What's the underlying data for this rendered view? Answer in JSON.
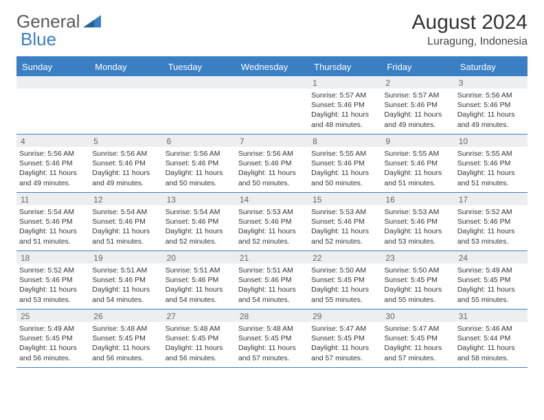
{
  "logo": {
    "text1": "General",
    "text2": "Blue"
  },
  "title": {
    "month": "August 2024",
    "location": "Luragung, Indonesia"
  },
  "colors": {
    "brand_blue": "#3a7fc4",
    "header_text": "#ffffff",
    "date_bg": "#eceeef",
    "date_text": "#666666",
    "body_text": "#333333",
    "logo_gray": "#5a5a5a"
  },
  "weekdays": [
    "Sunday",
    "Monday",
    "Tuesday",
    "Wednesday",
    "Thursday",
    "Friday",
    "Saturday"
  ],
  "weeks": [
    [
      {
        "date": "",
        "sunrise": "",
        "sunset": "",
        "daylight": ""
      },
      {
        "date": "",
        "sunrise": "",
        "sunset": "",
        "daylight": ""
      },
      {
        "date": "",
        "sunrise": "",
        "sunset": "",
        "daylight": ""
      },
      {
        "date": "",
        "sunrise": "",
        "sunset": "",
        "daylight": ""
      },
      {
        "date": "1",
        "sunrise": "Sunrise: 5:57 AM",
        "sunset": "Sunset: 5:46 PM",
        "daylight": "Daylight: 11 hours and 48 minutes."
      },
      {
        "date": "2",
        "sunrise": "Sunrise: 5:57 AM",
        "sunset": "Sunset: 5:46 PM",
        "daylight": "Daylight: 11 hours and 49 minutes."
      },
      {
        "date": "3",
        "sunrise": "Sunrise: 5:56 AM",
        "sunset": "Sunset: 5:46 PM",
        "daylight": "Daylight: 11 hours and 49 minutes."
      }
    ],
    [
      {
        "date": "4",
        "sunrise": "Sunrise: 5:56 AM",
        "sunset": "Sunset: 5:46 PM",
        "daylight": "Daylight: 11 hours and 49 minutes."
      },
      {
        "date": "5",
        "sunrise": "Sunrise: 5:56 AM",
        "sunset": "Sunset: 5:46 PM",
        "daylight": "Daylight: 11 hours and 49 minutes."
      },
      {
        "date": "6",
        "sunrise": "Sunrise: 5:56 AM",
        "sunset": "Sunset: 5:46 PM",
        "daylight": "Daylight: 11 hours and 50 minutes."
      },
      {
        "date": "7",
        "sunrise": "Sunrise: 5:56 AM",
        "sunset": "Sunset: 5:46 PM",
        "daylight": "Daylight: 11 hours and 50 minutes."
      },
      {
        "date": "8",
        "sunrise": "Sunrise: 5:55 AM",
        "sunset": "Sunset: 5:46 PM",
        "daylight": "Daylight: 11 hours and 50 minutes."
      },
      {
        "date": "9",
        "sunrise": "Sunrise: 5:55 AM",
        "sunset": "Sunset: 5:46 PM",
        "daylight": "Daylight: 11 hours and 51 minutes."
      },
      {
        "date": "10",
        "sunrise": "Sunrise: 5:55 AM",
        "sunset": "Sunset: 5:46 PM",
        "daylight": "Daylight: 11 hours and 51 minutes."
      }
    ],
    [
      {
        "date": "11",
        "sunrise": "Sunrise: 5:54 AM",
        "sunset": "Sunset: 5:46 PM",
        "daylight": "Daylight: 11 hours and 51 minutes."
      },
      {
        "date": "12",
        "sunrise": "Sunrise: 5:54 AM",
        "sunset": "Sunset: 5:46 PM",
        "daylight": "Daylight: 11 hours and 51 minutes."
      },
      {
        "date": "13",
        "sunrise": "Sunrise: 5:54 AM",
        "sunset": "Sunset: 5:46 PM",
        "daylight": "Daylight: 11 hours and 52 minutes."
      },
      {
        "date": "14",
        "sunrise": "Sunrise: 5:53 AM",
        "sunset": "Sunset: 5:46 PM",
        "daylight": "Daylight: 11 hours and 52 minutes."
      },
      {
        "date": "15",
        "sunrise": "Sunrise: 5:53 AM",
        "sunset": "Sunset: 5:46 PM",
        "daylight": "Daylight: 11 hours and 52 minutes."
      },
      {
        "date": "16",
        "sunrise": "Sunrise: 5:53 AM",
        "sunset": "Sunset: 5:46 PM",
        "daylight": "Daylight: 11 hours and 53 minutes."
      },
      {
        "date": "17",
        "sunrise": "Sunrise: 5:52 AM",
        "sunset": "Sunset: 5:46 PM",
        "daylight": "Daylight: 11 hours and 53 minutes."
      }
    ],
    [
      {
        "date": "18",
        "sunrise": "Sunrise: 5:52 AM",
        "sunset": "Sunset: 5:46 PM",
        "daylight": "Daylight: 11 hours and 53 minutes."
      },
      {
        "date": "19",
        "sunrise": "Sunrise: 5:51 AM",
        "sunset": "Sunset: 5:46 PM",
        "daylight": "Daylight: 11 hours and 54 minutes."
      },
      {
        "date": "20",
        "sunrise": "Sunrise: 5:51 AM",
        "sunset": "Sunset: 5:46 PM",
        "daylight": "Daylight: 11 hours and 54 minutes."
      },
      {
        "date": "21",
        "sunrise": "Sunrise: 5:51 AM",
        "sunset": "Sunset: 5:46 PM",
        "daylight": "Daylight: 11 hours and 54 minutes."
      },
      {
        "date": "22",
        "sunrise": "Sunrise: 5:50 AM",
        "sunset": "Sunset: 5:45 PM",
        "daylight": "Daylight: 11 hours and 55 minutes."
      },
      {
        "date": "23",
        "sunrise": "Sunrise: 5:50 AM",
        "sunset": "Sunset: 5:45 PM",
        "daylight": "Daylight: 11 hours and 55 minutes."
      },
      {
        "date": "24",
        "sunrise": "Sunrise: 5:49 AM",
        "sunset": "Sunset: 5:45 PM",
        "daylight": "Daylight: 11 hours and 55 minutes."
      }
    ],
    [
      {
        "date": "25",
        "sunrise": "Sunrise: 5:49 AM",
        "sunset": "Sunset: 5:45 PM",
        "daylight": "Daylight: 11 hours and 56 minutes."
      },
      {
        "date": "26",
        "sunrise": "Sunrise: 5:48 AM",
        "sunset": "Sunset: 5:45 PM",
        "daylight": "Daylight: 11 hours and 56 minutes."
      },
      {
        "date": "27",
        "sunrise": "Sunrise: 5:48 AM",
        "sunset": "Sunset: 5:45 PM",
        "daylight": "Daylight: 11 hours and 56 minutes."
      },
      {
        "date": "28",
        "sunrise": "Sunrise: 5:48 AM",
        "sunset": "Sunset: 5:45 PM",
        "daylight": "Daylight: 11 hours and 57 minutes."
      },
      {
        "date": "29",
        "sunrise": "Sunrise: 5:47 AM",
        "sunset": "Sunset: 5:45 PM",
        "daylight": "Daylight: 11 hours and 57 minutes."
      },
      {
        "date": "30",
        "sunrise": "Sunrise: 5:47 AM",
        "sunset": "Sunset: 5:45 PM",
        "daylight": "Daylight: 11 hours and 57 minutes."
      },
      {
        "date": "31",
        "sunrise": "Sunrise: 5:46 AM",
        "sunset": "Sunset: 5:44 PM",
        "daylight": "Daylight: 11 hours and 58 minutes."
      }
    ]
  ]
}
